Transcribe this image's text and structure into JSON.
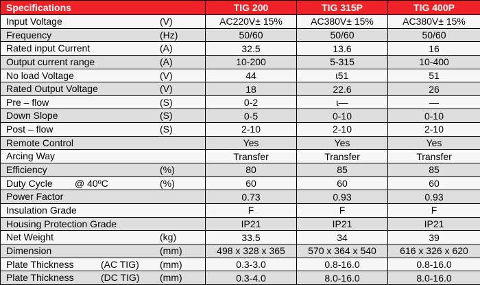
{
  "header": {
    "specifications": "Specifications",
    "models": [
      "TIG 200",
      "TIG 315P",
      "TIG 400P"
    ]
  },
  "rows": [
    {
      "label": "Input Voltage",
      "unit": "(V)",
      "values": [
        "AC220V± 15%",
        "AC380V± 15%",
        "AC380V± 15%"
      ]
    },
    {
      "label": "Frequency",
      "unit": "(Hz)",
      "values": [
        "50/60",
        "50/60",
        "50/60"
      ]
    },
    {
      "label": "Rated input Current",
      "unit": "(A)",
      "values": [
        "32.5",
        "13.6",
        "16"
      ]
    },
    {
      "label": "Output current range",
      "unit": "(A)",
      "values": [
        "10-200",
        "5-315",
        "10-400"
      ]
    },
    {
      "label": "No load Voltage",
      "unit": "(V)",
      "values": [
        "44",
        "ɩ51",
        "51"
      ]
    },
    {
      "label": "Rated Output Voltage",
      "unit": "(V)",
      "values": [
        "18",
        "22.6",
        "26"
      ]
    },
    {
      "label": "Pre – flow",
      "unit": "(S)",
      "values": [
        "0-2",
        "ɩ—",
        "—"
      ]
    },
    {
      "label": "Down Slope",
      "unit": "(S)",
      "values": [
        "0-5",
        "0-10",
        "0-10"
      ]
    },
    {
      "label": "Post – flow",
      "unit": "(S)",
      "values": [
        "2-10",
        "2-10",
        "2-10"
      ]
    },
    {
      "label": "Remote Control",
      "unit": "",
      "values": [
        "Yes",
        "Yes",
        "Yes"
      ]
    },
    {
      "label": "Arcing Way",
      "unit": "",
      "values": [
        "Transfer",
        "Transfer",
        "Transfer"
      ]
    },
    {
      "label": "Efficiency",
      "unit": "(%)",
      "values": [
        "80",
        "85",
        "85"
      ]
    },
    {
      "label": "Duty Cycle",
      "mid": "@ 40ºC",
      "unit": "(%)",
      "values": [
        "60",
        "60",
        "60"
      ]
    },
    {
      "label": "Power Factor",
      "unit": "",
      "values": [
        "0.73",
        "0.93",
        "0.93"
      ]
    },
    {
      "label": "Insulation Grade",
      "unit": "",
      "values": [
        "F",
        "F",
        "F"
      ]
    },
    {
      "label": "Housing Protection Grade",
      "unit": "",
      "values": [
        "IP21",
        "IP21",
        "IP21"
      ]
    },
    {
      "label": "Net Weight",
      "unit": "(kg)",
      "values": [
        "33.5",
        "34",
        "39"
      ]
    },
    {
      "label": "Dimension",
      "unit": "(mm)",
      "values": [
        "498 x 328 x 365",
        "570 x 364 x 540",
        "616 x 326 x 620"
      ]
    },
    {
      "label": "Plate Thickness",
      "mid": "(AC TIG)",
      "unit": "(mm)",
      "values": [
        "0.3-3.0",
        "0.8-16.0",
        "0.8-16.0"
      ]
    },
    {
      "label": "Plate Thickness",
      "mid": "(DC TIG)",
      "unit": "(mm)",
      "values": [
        "0.3-4.0",
        "8.0-16.0",
        "8.0-16.0"
      ]
    }
  ]
}
